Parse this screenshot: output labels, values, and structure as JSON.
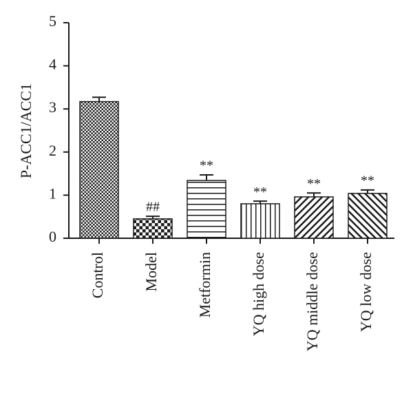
{
  "chart_data": {
    "type": "bar",
    "y_label": "P-ACC1/ACC1",
    "categories": [
      "Control",
      "Model",
      "Metformin",
      "YQ high dose",
      "YQ middle dose",
      "YQ low dose"
    ],
    "values": [
      3.17,
      0.45,
      1.34,
      0.8,
      0.96,
      1.04
    ],
    "errors": [
      0.1,
      0.06,
      0.13,
      0.06,
      0.09,
      0.08
    ],
    "annotations": [
      null,
      "##",
      "**",
      "**",
      "**",
      "**"
    ],
    "patterns": [
      "checker-fine",
      "checker",
      "hlines",
      "vlines",
      "diag-right",
      "diag-left"
    ],
    "color": "#1a1a1a",
    "ylim": [
      0,
      5
    ],
    "yticks": [
      0,
      1,
      2,
      3,
      4,
      5
    ]
  }
}
